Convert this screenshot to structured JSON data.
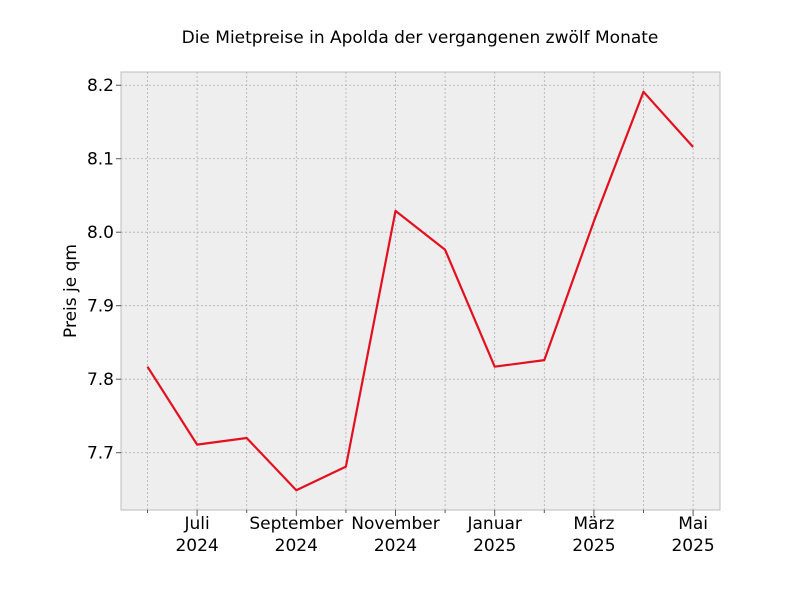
{
  "chart_data": {
    "type": "line",
    "title": "Die Mietpreise in Apolda der vergangenen zwölf Monate",
    "xlabel": "",
    "ylabel": "Preis je qm",
    "x": [
      "2024-06",
      "2024-07",
      "2024-08",
      "2024-09",
      "2024-10",
      "2024-11",
      "2024-12",
      "2025-01",
      "2025-02",
      "2025-03",
      "2025-04",
      "2025-05"
    ],
    "x_tick_labels": [
      {
        "month": "Juli",
        "year": "2024"
      },
      {
        "month": "September",
        "year": "2024"
      },
      {
        "month": "November",
        "year": "2024"
      },
      {
        "month": "Januar",
        "year": "2025"
      },
      {
        "month": "März",
        "year": "2025"
      },
      {
        "month": "Mai",
        "year": "2025"
      }
    ],
    "y_ticks": [
      "7.7",
      "7.8",
      "7.9",
      "8.0",
      "8.1",
      "8.2"
    ],
    "ylim": [
      7.622,
      8.218
    ],
    "series": [
      {
        "values": [
          7.817,
          7.711,
          7.72,
          7.649,
          7.681,
          8.029,
          7.976,
          7.817,
          7.826,
          8.015,
          8.191,
          8.116
        ],
        "color": "#e3101f"
      }
    ],
    "grid": true,
    "legend": "none",
    "colors": {
      "plot_background": "#eeeeee",
      "grid": "#b0b0b0",
      "axis": "#bcbcbc"
    }
  }
}
